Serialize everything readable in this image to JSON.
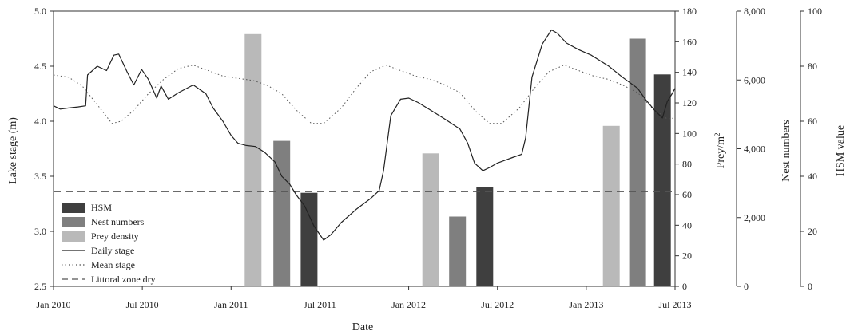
{
  "chart_data": {
    "type": "bar+line",
    "xlabel": "Date",
    "x_ticks": [
      "Jan 2010",
      "Jul 2010",
      "Jan 2011",
      "Jul 2011",
      "Jan 2012",
      "Jul 2012",
      "Jan 2013",
      "Jul 2013"
    ],
    "x_range": [
      "2010-01-01",
      "2013-07-01"
    ],
    "axes": {
      "lake_stage": {
        "label": "Lake stage (m)",
        "range": [
          2.5,
          5.0
        ],
        "ticks": [
          "2.5",
          "3.0",
          "3.5",
          "4.0",
          "4.5",
          "5.0"
        ]
      },
      "prey": {
        "label": "Prey/m",
        "label_sup": "2",
        "range": [
          0,
          180
        ],
        "ticks": [
          "0",
          "20",
          "40",
          "60",
          "80",
          "100",
          "120",
          "140",
          "160",
          "180"
        ]
      },
      "nests": {
        "label": "Nest numbers",
        "range": [
          0,
          8000
        ],
        "ticks": [
          "0",
          "2,000",
          "4,000",
          "6,000",
          "8,000"
        ]
      },
      "hsm": {
        "label": "HSM value",
        "range": [
          0,
          100
        ],
        "ticks": [
          "0",
          "20",
          "40",
          "60",
          "80",
          "100"
        ]
      }
    },
    "legend": {
      "placement": "lower-left",
      "entries": [
        {
          "label": "HSM",
          "style": "bar",
          "color": "#3f3f3f"
        },
        {
          "label": "Nest numbers",
          "style": "bar",
          "color": "#7f7f7f"
        },
        {
          "label": "Prey density",
          "style": "bar",
          "color": "#b9b9b9"
        },
        {
          "label": "Daily stage",
          "style": "solid-line",
          "color": "#222222"
        },
        {
          "label": "Mean stage",
          "style": "dotted-line",
          "color": "#555555"
        },
        {
          "label": "Littoral zone dry",
          "style": "dashed-line",
          "color": "#555555"
        }
      ]
    },
    "bars": [
      {
        "series": "Prey density",
        "date": "2011-02-15",
        "axis": "prey",
        "value": 165
      },
      {
        "series": "Nest numbers",
        "date": "2011-04-15",
        "axis": "nests",
        "value": 4230
      },
      {
        "series": "HSM",
        "date": "2011-06-10",
        "axis": "hsm",
        "value": 34
      },
      {
        "series": "Prey density",
        "date": "2012-02-15",
        "axis": "prey",
        "value": 87
      },
      {
        "series": "Nest numbers",
        "date": "2012-04-10",
        "axis": "nests",
        "value": 2030
      },
      {
        "series": "HSM",
        "date": "2012-06-05",
        "axis": "hsm",
        "value": 36
      },
      {
        "series": "Prey density",
        "date": "2013-02-20",
        "axis": "prey",
        "value": 105
      },
      {
        "series": "Nest numbers",
        "date": "2013-04-15",
        "axis": "nests",
        "value": 7200
      },
      {
        "series": "HSM",
        "date": "2013-06-05",
        "axis": "hsm",
        "value": 77
      }
    ],
    "littoral_zone_dry": 3.36,
    "daily_stage": [
      [
        "2010-01-01",
        4.14
      ],
      [
        "2010-01-15",
        4.11
      ],
      [
        "2010-02-01",
        4.12
      ],
      [
        "2010-02-20",
        4.13
      ],
      [
        "2010-03-08",
        4.14
      ],
      [
        "2010-03-12",
        4.42
      ],
      [
        "2010-04-01",
        4.5
      ],
      [
        "2010-04-20",
        4.46
      ],
      [
        "2010-05-05",
        4.6
      ],
      [
        "2010-05-15",
        4.61
      ],
      [
        "2010-06-01",
        4.45
      ],
      [
        "2010-06-15",
        4.33
      ],
      [
        "2010-07-01",
        4.47
      ],
      [
        "2010-07-15",
        4.38
      ],
      [
        "2010-08-01",
        4.21
      ],
      [
        "2010-08-10",
        4.32
      ],
      [
        "2010-08-25",
        4.2
      ],
      [
        "2010-09-15",
        4.26
      ],
      [
        "2010-10-15",
        4.33
      ],
      [
        "2010-11-10",
        4.25
      ],
      [
        "2010-11-25",
        4.12
      ],
      [
        "2010-12-15",
        4.0
      ],
      [
        "2011-01-01",
        3.87
      ],
      [
        "2011-01-15",
        3.8
      ],
      [
        "2011-02-01",
        3.78
      ],
      [
        "2011-02-20",
        3.77
      ],
      [
        "2011-03-10",
        3.72
      ],
      [
        "2011-04-01",
        3.63
      ],
      [
        "2011-04-15",
        3.5
      ],
      [
        "2011-05-01",
        3.43
      ],
      [
        "2011-05-15",
        3.33
      ],
      [
        "2011-06-01",
        3.23
      ],
      [
        "2011-06-20",
        3.05
      ],
      [
        "2011-07-10",
        2.92
      ],
      [
        "2011-07-25",
        2.97
      ],
      [
        "2011-08-15",
        3.08
      ],
      [
        "2011-09-15",
        3.2
      ],
      [
        "2011-10-15",
        3.3
      ],
      [
        "2011-11-01",
        3.37
      ],
      [
        "2011-11-10",
        3.55
      ],
      [
        "2011-11-25",
        4.05
      ],
      [
        "2011-12-15",
        4.2
      ],
      [
        "2012-01-01",
        4.21
      ],
      [
        "2012-01-20",
        4.17
      ],
      [
        "2012-02-15",
        4.1
      ],
      [
        "2012-03-15",
        4.02
      ],
      [
        "2012-04-15",
        3.93
      ],
      [
        "2012-05-01",
        3.8
      ],
      [
        "2012-05-15",
        3.62
      ],
      [
        "2012-06-01",
        3.55
      ],
      [
        "2012-06-15",
        3.58
      ],
      [
        "2012-07-01",
        3.62
      ],
      [
        "2012-08-01",
        3.67
      ],
      [
        "2012-08-20",
        3.7
      ],
      [
        "2012-08-28",
        3.85
      ],
      [
        "2012-09-10",
        4.4
      ],
      [
        "2012-10-01",
        4.7
      ],
      [
        "2012-10-20",
        4.83
      ],
      [
        "2012-11-01",
        4.8
      ],
      [
        "2012-11-20",
        4.71
      ],
      [
        "2012-12-15",
        4.65
      ],
      [
        "2013-01-10",
        4.6
      ],
      [
        "2013-02-15",
        4.5
      ],
      [
        "2013-03-15",
        4.4
      ],
      [
        "2013-04-15",
        4.3
      ],
      [
        "2013-05-01",
        4.2
      ],
      [
        "2013-05-20",
        4.1
      ],
      [
        "2013-06-05",
        4.03
      ],
      [
        "2013-06-15",
        4.18
      ],
      [
        "2013-06-25",
        4.25
      ],
      [
        "2013-07-01",
        4.3
      ]
    ],
    "mean_stage": [
      [
        "2010-01-01",
        4.42
      ],
      [
        "2010-02-01",
        4.4
      ],
      [
        "2010-03-01",
        4.32
      ],
      [
        "2010-04-01",
        4.15
      ],
      [
        "2010-05-01",
        3.98
      ],
      [
        "2010-05-20",
        4.0
      ],
      [
        "2010-06-15",
        4.1
      ],
      [
        "2010-07-15",
        4.25
      ],
      [
        "2010-08-15",
        4.38
      ],
      [
        "2010-09-15",
        4.48
      ],
      [
        "2010-10-15",
        4.51
      ],
      [
        "2010-11-15",
        4.46
      ],
      [
        "2010-12-15",
        4.41
      ],
      [
        "2011-01-15",
        4.39
      ],
      [
        "2011-02-15",
        4.37
      ],
      [
        "2011-03-15",
        4.33
      ],
      [
        "2011-04-15",
        4.25
      ],
      [
        "2011-05-15",
        4.1
      ],
      [
        "2011-06-15",
        3.98
      ],
      [
        "2011-07-10",
        3.98
      ],
      [
        "2011-08-15",
        4.12
      ],
      [
        "2011-09-15",
        4.3
      ],
      [
        "2011-10-15",
        4.45
      ],
      [
        "2011-11-15",
        4.51
      ],
      [
        "2011-12-15",
        4.46
      ],
      [
        "2012-01-15",
        4.41
      ],
      [
        "2012-02-15",
        4.38
      ],
      [
        "2012-03-15",
        4.33
      ],
      [
        "2012-04-15",
        4.26
      ],
      [
        "2012-05-15",
        4.1
      ],
      [
        "2012-06-15",
        3.98
      ],
      [
        "2012-07-10",
        3.98
      ],
      [
        "2012-08-15",
        4.12
      ],
      [
        "2012-09-15",
        4.3
      ],
      [
        "2012-10-15",
        4.45
      ],
      [
        "2012-11-15",
        4.51
      ],
      [
        "2012-12-15",
        4.46
      ],
      [
        "2013-01-15",
        4.41
      ],
      [
        "2013-02-15",
        4.38
      ],
      [
        "2013-03-15",
        4.33
      ],
      [
        "2013-04-15",
        4.26
      ],
      [
        "2013-05-15",
        4.12
      ],
      [
        "2013-06-15",
        4.02
      ],
      [
        "2013-07-01",
        4.03
      ]
    ]
  }
}
